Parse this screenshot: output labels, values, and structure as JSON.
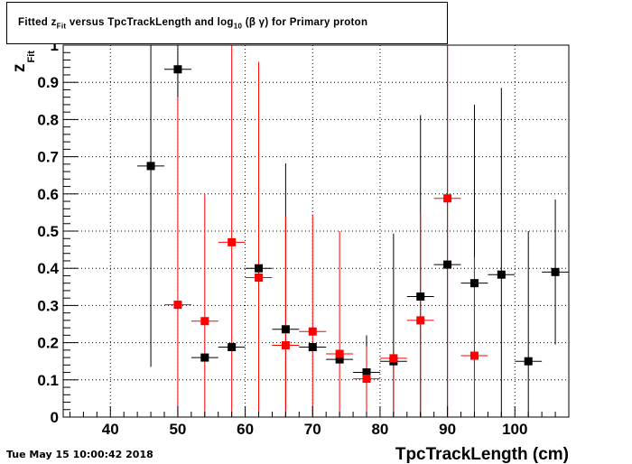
{
  "title_parts": {
    "prefix": "Fitted  z",
    "sub1": "Fit",
    "middle": "  versus TpcTrackLength and log",
    "sub2": "10",
    "suffix": " (β γ) for Primary proton"
  },
  "footer": {
    "date": "Tue May 15 10:00:42 2018"
  },
  "chart_data": {
    "type": "scatter",
    "title": "Fitted  z_Fit  versus TpcTrackLength and log_10 (β γ) for Primary proton",
    "xlabel": "TpcTrackLength (cm)",
    "ylabel_main": "z",
    "ylabel_sub": "Fit",
    "xlim": [
      33,
      108
    ],
    "ylim": [
      0,
      1
    ],
    "grid": true,
    "x_ticks": [
      40,
      50,
      60,
      70,
      80,
      90,
      100
    ],
    "y_ticks": [
      0,
      0.1,
      0.2,
      0.3,
      0.4,
      0.5,
      0.6,
      0.7,
      0.8,
      0.9,
      1
    ],
    "y_tick_labels": [
      "0",
      "0.1",
      "0.2",
      "0.3",
      "0.4",
      "0.5",
      "0.6",
      "0.7",
      "0.8",
      "0.9",
      "1"
    ],
    "series": [
      {
        "color": "#000000",
        "x_half_width": 2,
        "points": [
          {
            "x": 46,
            "y": 0.675,
            "ylo": 0.135,
            "yhi": 1.0
          },
          {
            "x": 50,
            "y": 0.935,
            "ylo": 0.86,
            "yhi": 1.0
          },
          {
            "x": 54,
            "y": 0.16,
            "ylo": 0.16,
            "yhi": 0.16
          },
          {
            "x": 58,
            "y": 0.188,
            "ylo": 0.188,
            "yhi": 0.188
          },
          {
            "x": 62,
            "y": 0.4,
            "ylo": 0.4,
            "yhi": 0.4
          },
          {
            "x": 66,
            "y": 0.236,
            "ylo": 0.0,
            "yhi": 0.682
          },
          {
            "x": 70,
            "y": 0.188,
            "ylo": 0.188,
            "yhi": 0.188
          },
          {
            "x": 74,
            "y": 0.155,
            "ylo": 0.155,
            "yhi": 0.155
          },
          {
            "x": 78,
            "y": 0.12,
            "ylo": 0.02,
            "yhi": 0.22
          },
          {
            "x": 82,
            "y": 0.15,
            "ylo": 0.0,
            "yhi": 0.493
          },
          {
            "x": 86,
            "y": 0.324,
            "ylo": 0.0,
            "yhi": 0.812
          },
          {
            "x": 90,
            "y": 0.41,
            "ylo": 0.0,
            "yhi": 1.0
          },
          {
            "x": 94,
            "y": 0.36,
            "ylo": 0.0,
            "yhi": 0.84
          },
          {
            "x": 98,
            "y": 0.383,
            "ylo": 0.0,
            "yhi": 0.885
          },
          {
            "x": 102,
            "y": 0.15,
            "ylo": 0.0,
            "yhi": 0.5
          },
          {
            "x": 106,
            "y": 0.39,
            "ylo": 0.195,
            "yhi": 0.585
          }
        ]
      },
      {
        "color": "#ff0000",
        "x_half_width": 2,
        "points": [
          {
            "x": 50,
            "y": 0.302,
            "ylo": 0.0,
            "yhi": 0.86
          },
          {
            "x": 54,
            "y": 0.258,
            "ylo": 0.0,
            "yhi": 0.6
          },
          {
            "x": 58,
            "y": 0.47,
            "ylo": 0.0,
            "yhi": 1.0
          },
          {
            "x": 62,
            "y": 0.375,
            "ylo": 0.0,
            "yhi": 0.955
          },
          {
            "x": 66,
            "y": 0.193,
            "ylo": 0.0,
            "yhi": 0.54
          },
          {
            "x": 70,
            "y": 0.23,
            "ylo": 0.0,
            "yhi": 0.545
          },
          {
            "x": 74,
            "y": 0.17,
            "ylo": 0.0,
            "yhi": 0.5
          },
          {
            "x": 78,
            "y": 0.103,
            "ylo": 0.0,
            "yhi": 0.19
          },
          {
            "x": 82,
            "y": 0.158,
            "ylo": 0.0,
            "yhi": 0.16
          },
          {
            "x": 86,
            "y": 0.26,
            "ylo": 0.0,
            "yhi": 0.55
          },
          {
            "x": 90,
            "y": 0.588,
            "ylo": 0.0,
            "yhi": 1.0
          },
          {
            "x": 94,
            "y": 0.165,
            "ylo": 0.0,
            "yhi": 0.43
          }
        ]
      }
    ]
  }
}
